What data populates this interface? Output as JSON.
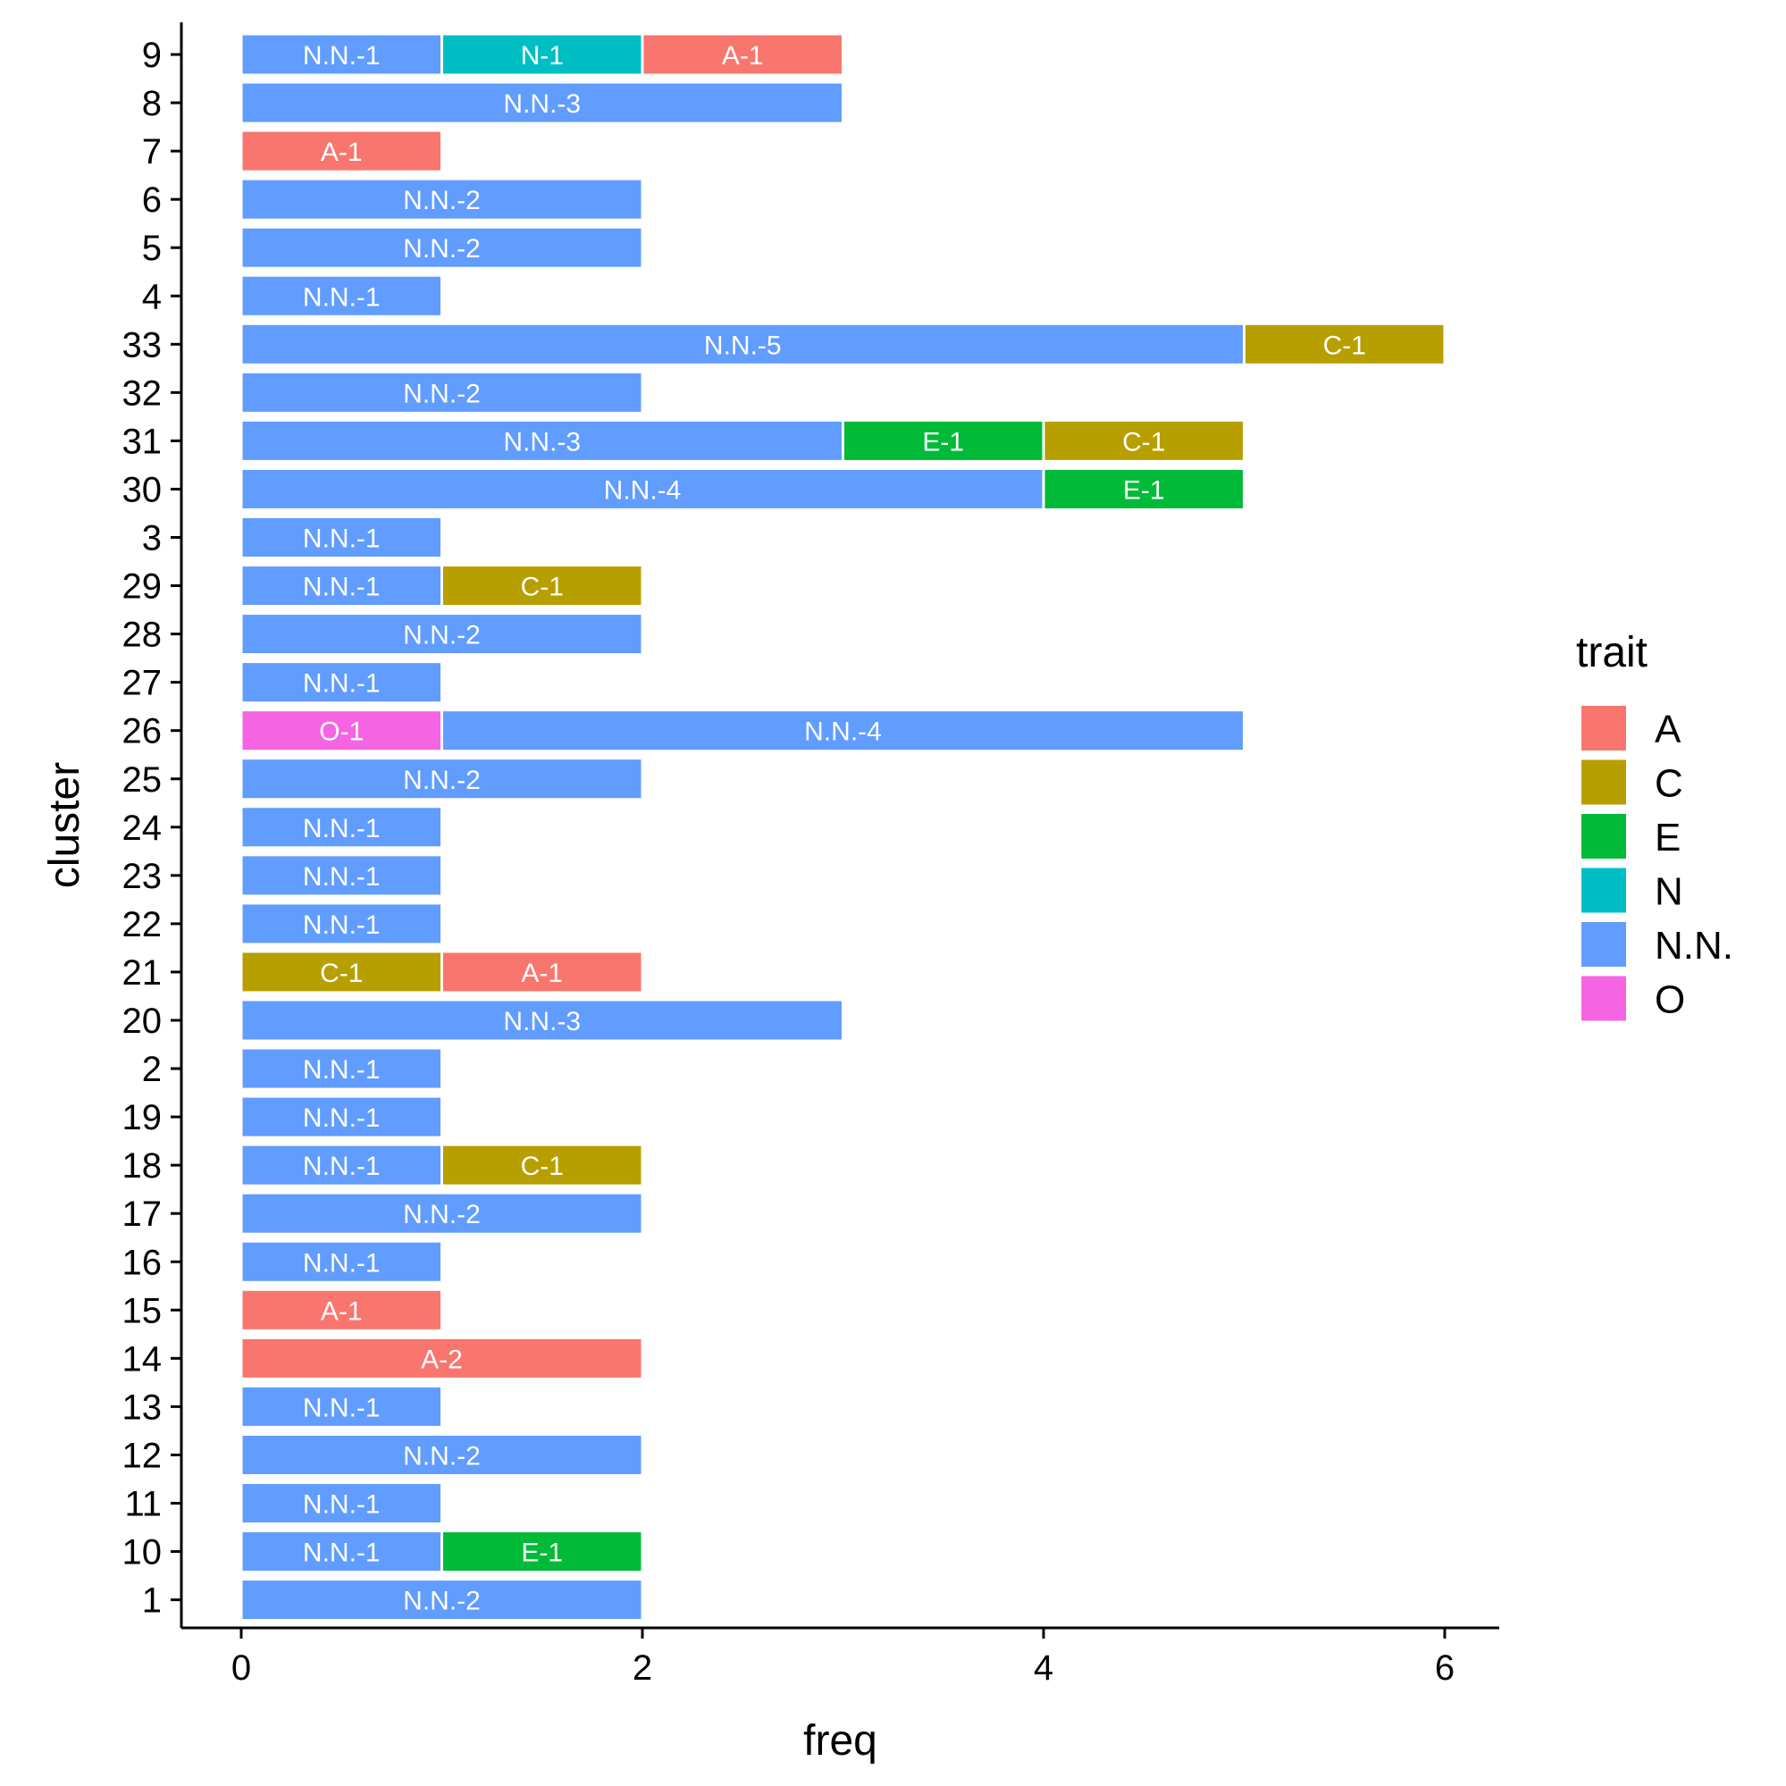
{
  "chart_data": {
    "type": "bar",
    "orientation": "horizontal",
    "stacked": true,
    "xlabel": "freq",
    "ylabel": "cluster",
    "xlim": [
      0,
      6.3
    ],
    "x_ticks": [
      0,
      2,
      4,
      6
    ],
    "grid": false,
    "legend": {
      "title": "trait",
      "placement": "right",
      "entries": [
        {
          "name": "A",
          "color": "#F8766D"
        },
        {
          "name": "C",
          "color": "#B79F00"
        },
        {
          "name": "E",
          "color": "#00BA38"
        },
        {
          "name": "N",
          "color": "#00BFC4"
        },
        {
          "name": "N.N.",
          "color": "#619CFF"
        },
        {
          "name": "O",
          "color": "#F564E3"
        }
      ]
    },
    "clusters": [
      {
        "cluster": "9",
        "segments": [
          {
            "trait": "N.N.",
            "value": 1,
            "label": "N.N.-1"
          },
          {
            "trait": "N",
            "value": 1,
            "label": "N-1"
          },
          {
            "trait": "A",
            "value": 1,
            "label": "A-1"
          }
        ]
      },
      {
        "cluster": "8",
        "segments": [
          {
            "trait": "N.N.",
            "value": 3,
            "label": "N.N.-3"
          }
        ]
      },
      {
        "cluster": "7",
        "segments": [
          {
            "trait": "A",
            "value": 1,
            "label": "A-1"
          }
        ]
      },
      {
        "cluster": "6",
        "segments": [
          {
            "trait": "N.N.",
            "value": 2,
            "label": "N.N.-2"
          }
        ]
      },
      {
        "cluster": "5",
        "segments": [
          {
            "trait": "N.N.",
            "value": 2,
            "label": "N.N.-2"
          }
        ]
      },
      {
        "cluster": "4",
        "segments": [
          {
            "trait": "N.N.",
            "value": 1,
            "label": "N.N.-1"
          }
        ]
      },
      {
        "cluster": "33",
        "segments": [
          {
            "trait": "N.N.",
            "value": 5,
            "label": "N.N.-5"
          },
          {
            "trait": "C",
            "value": 1,
            "label": "C-1"
          }
        ]
      },
      {
        "cluster": "32",
        "segments": [
          {
            "trait": "N.N.",
            "value": 2,
            "label": "N.N.-2"
          }
        ]
      },
      {
        "cluster": "31",
        "segments": [
          {
            "trait": "N.N.",
            "value": 3,
            "label": "N.N.-3"
          },
          {
            "trait": "E",
            "value": 1,
            "label": "E-1"
          },
          {
            "trait": "C",
            "value": 1,
            "label": "C-1"
          }
        ]
      },
      {
        "cluster": "30",
        "segments": [
          {
            "trait": "N.N.",
            "value": 4,
            "label": "N.N.-4"
          },
          {
            "trait": "E",
            "value": 1,
            "label": "E-1"
          }
        ]
      },
      {
        "cluster": "3",
        "segments": [
          {
            "trait": "N.N.",
            "value": 1,
            "label": "N.N.-1"
          }
        ]
      },
      {
        "cluster": "29",
        "segments": [
          {
            "trait": "N.N.",
            "value": 1,
            "label": "N.N.-1"
          },
          {
            "trait": "C",
            "value": 1,
            "label": "C-1"
          }
        ]
      },
      {
        "cluster": "28",
        "segments": [
          {
            "trait": "N.N.",
            "value": 2,
            "label": "N.N.-2"
          }
        ]
      },
      {
        "cluster": "27",
        "segments": [
          {
            "trait": "N.N.",
            "value": 1,
            "label": "N.N.-1"
          }
        ]
      },
      {
        "cluster": "26",
        "segments": [
          {
            "trait": "O",
            "value": 1,
            "label": "O-1"
          },
          {
            "trait": "N.N.",
            "value": 4,
            "label": "N.N.-4"
          }
        ]
      },
      {
        "cluster": "25",
        "segments": [
          {
            "trait": "N.N.",
            "value": 2,
            "label": "N.N.-2"
          }
        ]
      },
      {
        "cluster": "24",
        "segments": [
          {
            "trait": "N.N.",
            "value": 1,
            "label": "N.N.-1"
          }
        ]
      },
      {
        "cluster": "23",
        "segments": [
          {
            "trait": "N.N.",
            "value": 1,
            "label": "N.N.-1"
          }
        ]
      },
      {
        "cluster": "22",
        "segments": [
          {
            "trait": "N.N.",
            "value": 1,
            "label": "N.N.-1"
          }
        ]
      },
      {
        "cluster": "21",
        "segments": [
          {
            "trait": "C",
            "value": 1,
            "label": "C-1"
          },
          {
            "trait": "A",
            "value": 1,
            "label": "A-1"
          }
        ]
      },
      {
        "cluster": "20",
        "segments": [
          {
            "trait": "N.N.",
            "value": 3,
            "label": "N.N.-3"
          }
        ]
      },
      {
        "cluster": "2",
        "segments": [
          {
            "trait": "N.N.",
            "value": 1,
            "label": "N.N.-1"
          }
        ]
      },
      {
        "cluster": "19",
        "segments": [
          {
            "trait": "N.N.",
            "value": 1,
            "label": "N.N.-1"
          }
        ]
      },
      {
        "cluster": "18",
        "segments": [
          {
            "trait": "N.N.",
            "value": 1,
            "label": "N.N.-1"
          },
          {
            "trait": "C",
            "value": 1,
            "label": "C-1"
          }
        ]
      },
      {
        "cluster": "17",
        "segments": [
          {
            "trait": "N.N.",
            "value": 2,
            "label": "N.N.-2"
          }
        ]
      },
      {
        "cluster": "16",
        "segments": [
          {
            "trait": "N.N.",
            "value": 1,
            "label": "N.N.-1"
          }
        ]
      },
      {
        "cluster": "15",
        "segments": [
          {
            "trait": "A",
            "value": 1,
            "label": "A-1"
          }
        ]
      },
      {
        "cluster": "14",
        "segments": [
          {
            "trait": "A",
            "value": 2,
            "label": "A-2"
          }
        ]
      },
      {
        "cluster": "13",
        "segments": [
          {
            "trait": "N.N.",
            "value": 1,
            "label": "N.N.-1"
          }
        ]
      },
      {
        "cluster": "12",
        "segments": [
          {
            "trait": "N.N.",
            "value": 2,
            "label": "N.N.-2"
          }
        ]
      },
      {
        "cluster": "11",
        "segments": [
          {
            "trait": "N.N.",
            "value": 1,
            "label": "N.N.-1"
          }
        ]
      },
      {
        "cluster": "10",
        "segments": [
          {
            "trait": "N.N.",
            "value": 1,
            "label": "N.N.-1"
          },
          {
            "trait": "E",
            "value": 1,
            "label": "E-1"
          }
        ]
      },
      {
        "cluster": "1",
        "segments": [
          {
            "trait": "N.N.",
            "value": 2,
            "label": "N.N.-2"
          }
        ]
      }
    ]
  }
}
